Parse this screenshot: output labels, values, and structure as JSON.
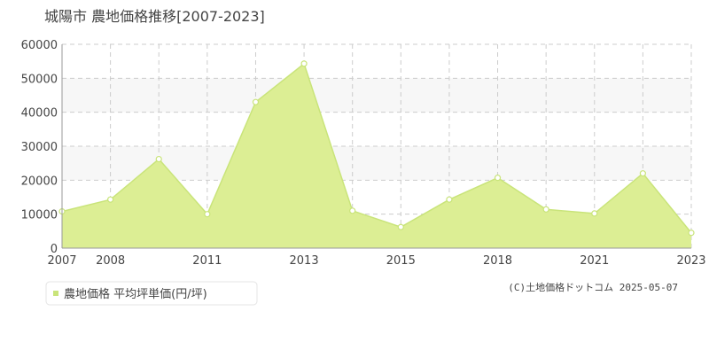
{
  "chart_data": {
    "type": "area",
    "title": "城陽市  農地価格推移[2007-2023]",
    "categories": [
      "2007",
      "2008",
      null,
      "2011",
      null,
      "2013",
      null,
      "2015",
      null,
      "2018",
      null,
      "2021",
      null,
      "2023"
    ],
    "series": [
      {
        "name": "農地価格 平均坪単価(円/坪)",
        "color": "#c9e47a",
        "values": [
          10800,
          14300,
          26200,
          10000,
          43000,
          54300,
          11000,
          6200,
          14300,
          20700,
          11400,
          10200,
          22000,
          4500
        ]
      }
    ],
    "ylim": [
      0,
      60000
    ],
    "yticks": [
      0,
      10000,
      20000,
      30000,
      40000,
      50000,
      60000
    ],
    "grid": true,
    "footer": "(C)土地価格ドットコム 2025-05-07"
  }
}
